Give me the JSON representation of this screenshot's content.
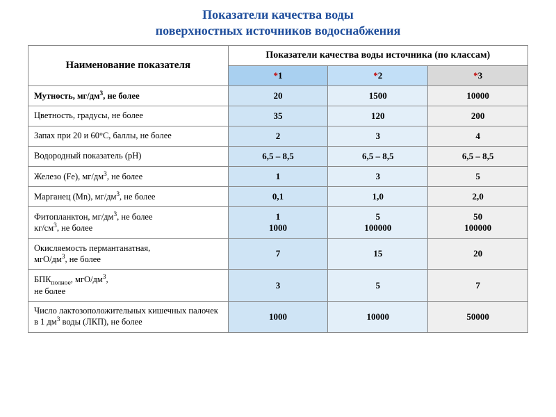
{
  "title_line1": "Показатели качества воды",
  "title_line2": "поверхностных источников водоснабжения",
  "colors": {
    "title": "#1f4e9c",
    "star": "#c00000",
    "col1_header": "#a9d0f0",
    "col1_body": "#cfe4f5",
    "col2_header": "#c2dff7",
    "col2_body": "#e3eff9",
    "col3_header": "#d9d9d9",
    "col3_body": "#efefef",
    "border": "#888888"
  },
  "header": {
    "param": "Наименование показателя",
    "quality": "Показатели качества воды источника (по классам)",
    "c1": "1",
    "c2": "2",
    "c3": "3"
  },
  "rows": [
    {
      "label_html": "Мутность, мг/дм<sup>3</sup>, не более",
      "v1": "20",
      "v2": "1500",
      "v3": "10000",
      "bold": true
    },
    {
      "label_html": "Цветность, градусы, не более",
      "v1": "35",
      "v2": "120",
      "v3": "200",
      "bold": false
    },
    {
      "label_html": "Запах при 20 и 60&deg;С, баллы, не более",
      "v1": "2",
      "v2": "3",
      "v3": "4",
      "bold": false
    },
    {
      "label_html": "Водородный показатель (рН)",
      "v1": "6,5 – 8,5",
      "v2": "6,5 – 8,5",
      "v3": "6,5 – 8,5",
      "bold": false
    },
    {
      "label_html": "Железо (Fe), мг/дм<sup>3</sup>, не более",
      "v1": "1",
      "v2": "3",
      "v3": "5",
      "bold": false
    },
    {
      "label_html": "Марганец (Mn), мг/дм<sup>3</sup>, не более",
      "v1": "0,1",
      "v2": "1,0",
      "v3": "2,0",
      "bold": false
    },
    {
      "label_html": "Фитопланктон, мг/дм<sup>3</sup>, не более<br>кг/см<sup>3</sup>, не более",
      "v1": "1<br>1000",
      "v2": "5<br>100000",
      "v3": "50<br>100000",
      "bold": false
    },
    {
      "label_html": "Окисляемость пермантанатная,<br>мгО/дм<sup>3</sup>, не более",
      "v1": "7",
      "v2": "15",
      "v3": "20",
      "bold": false
    },
    {
      "label_html": "БПК<sub>полное</sub>, мгО/дм<sup>3</sup>,<br>не более",
      "v1": "3",
      "v2": "5",
      "v3": "7",
      "bold": false
    },
    {
      "label_html": "Число лактозоположительных кишечных палочек  в 1 дм<sup>3</sup> воды (ЛКП),  не более",
      "v1": "1000",
      "v2": "10000",
      "v3": "50000",
      "bold": false
    }
  ]
}
